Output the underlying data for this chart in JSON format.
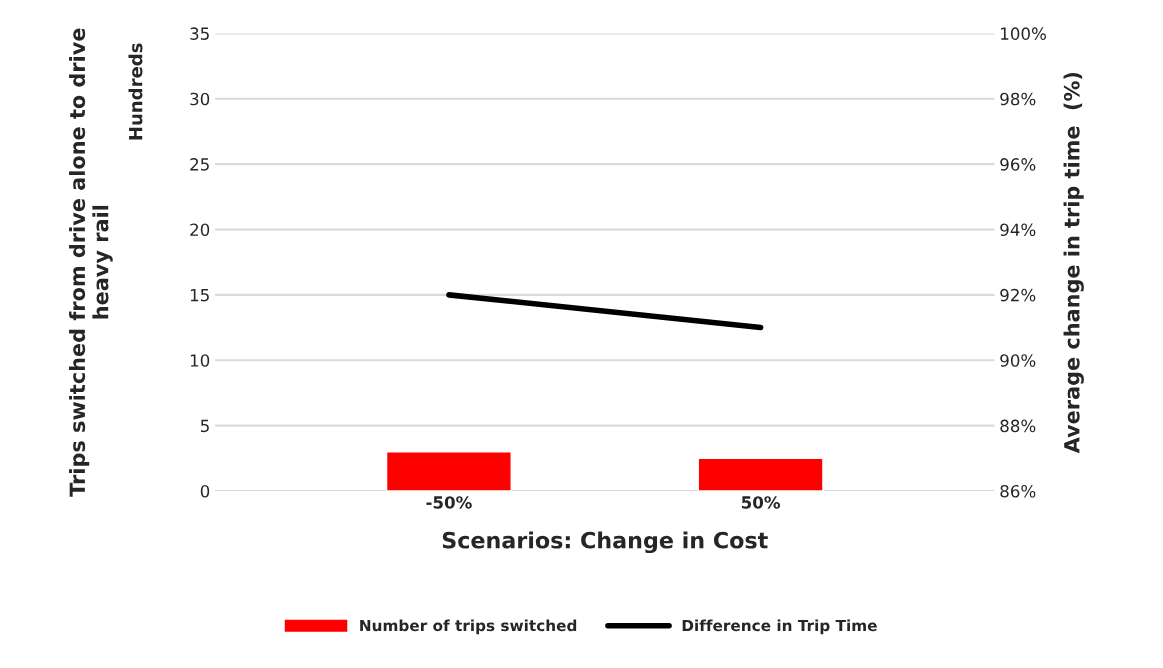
{
  "chart_data": {
    "type": "bar",
    "xlabel": "Scenarios: Change in Cost",
    "ylabel": "Trips switched from drive alone to drive heavy rail",
    "y2label": "Average change in trip time  (%)",
    "categories": [
      "-50%",
      "50%"
    ],
    "series": [
      {
        "name": "Number of trips switched",
        "color": "#ff0000",
        "values": [
          3.0,
          2.5
        ]
      },
      {
        "name": "Difference in Trip Time",
        "type": "line",
        "axis": "y2",
        "color": "#000000",
        "values": [
          92,
          91
        ]
      }
    ],
    "ylim": [
      0,
      35
    ],
    "yticks": [
      0,
      5,
      10,
      15,
      20,
      25,
      30,
      35
    ],
    "y2lim": [
      86,
      100
    ],
    "y2ticks": [
      {
        "value": 86,
        "label": "86%"
      },
      {
        "value": 88,
        "label": "88%"
      },
      {
        "value": 90,
        "label": "90%"
      },
      {
        "value": 92,
        "label": "92%"
      },
      {
        "value": 94,
        "label": "94%"
      },
      {
        "value": 96,
        "label": "96%"
      },
      {
        "value": 98,
        "label": "98%"
      },
      {
        "value": 100,
        "label": "100%"
      }
    ],
    "annotations": [
      "Hundreds"
    ],
    "grid": "y",
    "legend": "bottom",
    "marker": "none",
    "line_style": "solid"
  }
}
